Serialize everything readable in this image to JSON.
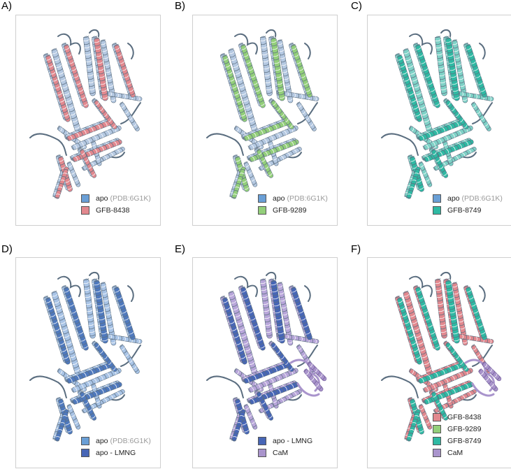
{
  "colors": {
    "apo": "#6a9fd6",
    "gfb8438": "#e2888e",
    "gfb9289": "#93cf7a",
    "gfb8749": "#2fb9a3",
    "apo_lmng": "#4766b6",
    "cam": "#a994cc",
    "structure_light": "#b8cbe6",
    "structure_dark": "#5a6d7f"
  },
  "panels": [
    {
      "letter": "A)",
      "overlay_color": "#e2888e",
      "light": "#b5c9e2",
      "cam": false,
      "legend": [
        {
          "label": "apo",
          "note": "(PDB:6G1K)",
          "color": "#6a9fd6"
        },
        {
          "label": "GFB-8438",
          "note": "",
          "color": "#e2888e"
        }
      ]
    },
    {
      "letter": "B)",
      "overlay_color": "#93cf7a",
      "light": "#b5c9e2",
      "cam": false,
      "legend": [
        {
          "label": "apo",
          "note": "(PDB:6G1K)",
          "color": "#6a9fd6"
        },
        {
          "label": "GFB-9289",
          "note": "",
          "color": "#93cf7a"
        }
      ]
    },
    {
      "letter": "C)",
      "overlay_color": "#2fb9a3",
      "light": "#7fd2c7",
      "cam": false,
      "legend": [
        {
          "label": "apo",
          "note": "(PDB:6G1K)",
          "color": "#6a9fd6"
        },
        {
          "label": "GFB-8749",
          "note": "",
          "color": "#2fb9a3"
        }
      ]
    },
    {
      "letter": "D)",
      "overlay_color": "#4f79bd",
      "light": "#a9c4e6",
      "cam": false,
      "legend": [
        {
          "label": "apo",
          "note": "(PDB:6G1K)",
          "color": "#6a9fd6"
        },
        {
          "label": "apo - LMNG",
          "note": "",
          "color": "#4766b6"
        }
      ]
    },
    {
      "letter": "E)",
      "overlay_color": "#4766b6",
      "light": "#b8a6da",
      "cam": true,
      "legend": [
        {
          "label": "apo - LMNG",
          "note": "",
          "color": "#4766b6"
        },
        {
          "label": "CaM",
          "note": "",
          "color": "#a994cc"
        }
      ]
    },
    {
      "letter": "F)",
      "overlay_color": "#2fb9a3",
      "light": "#e2888e",
      "cam": true,
      "legend": [
        {
          "label": "GFB-8438",
          "note": "",
          "color": "#e2888e"
        },
        {
          "label": "GFB-9289",
          "note": "",
          "color": "#93cf7a"
        },
        {
          "label": "GFB-8749",
          "note": "",
          "color": "#2fb9a3"
        },
        {
          "label": "CaM",
          "note": "",
          "color": "#a994cc"
        }
      ]
    }
  ]
}
